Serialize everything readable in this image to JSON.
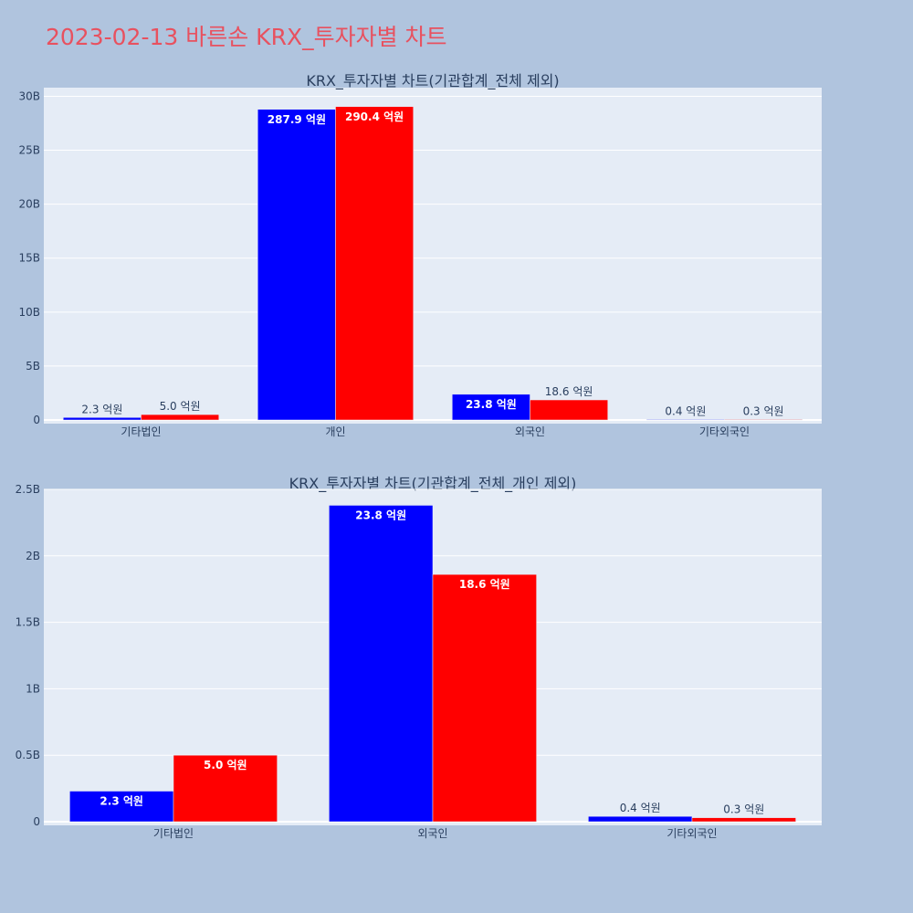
{
  "title": "2023-02-13 바른손 KRX_투자자별 차트",
  "colors": {
    "buy": "#0000ff",
    "sell": "#ff0000",
    "plot_bg": "#e5ecf6",
    "page_bg": "#b0c4de",
    "title": "#e8515f"
  },
  "chart_data": [
    {
      "type": "bar",
      "title": "KRX_투자자별 차트(기관합계_전체 제외)",
      "categories": [
        "기타법인",
        "개인",
        "외국인",
        "기타외국인"
      ],
      "series": [
        {
          "values": [
            0.23,
            28.79,
            2.38,
            0.04
          ],
          "labels": [
            "2.3 억원",
            "287.9 억원",
            "23.8 억원",
            "0.4 억원"
          ]
        },
        {
          "values": [
            0.5,
            29.04,
            1.86,
            0.03
          ],
          "labels": [
            "5.0 억원",
            "290.4 억원",
            "18.6 억원",
            "0.3 억원"
          ]
        }
      ],
      "ylim": [
        0,
        30.8
      ],
      "yticks": [
        0,
        5,
        10,
        15,
        20,
        25,
        30
      ],
      "ytick_labels": [
        "0",
        "5B",
        "10B",
        "15B",
        "20B",
        "25B",
        "30B"
      ],
      "grid": true,
      "legend": "none"
    },
    {
      "type": "bar",
      "title": "KRX_투자자별 차트(기관합계_전체_개인 제외)",
      "categories": [
        "기타법인",
        "외국인",
        "기타외국인"
      ],
      "series": [
        {
          "values": [
            0.23,
            2.38,
            0.04
          ],
          "labels": [
            "2.3 억원",
            "23.8 억원",
            "0.4 억원"
          ]
        },
        {
          "values": [
            0.5,
            1.86,
            0.03
          ],
          "labels": [
            "5.0 억원",
            "18.6 억원",
            "0.3 억원"
          ]
        }
      ],
      "ylim": [
        0,
        2.5
      ],
      "yticks": [
        0,
        0.5,
        1,
        1.5,
        2,
        2.5
      ],
      "ytick_labels": [
        "0",
        "0.5B",
        "1B",
        "1.5B",
        "2B",
        "2.5B"
      ],
      "grid": true,
      "legend": "none"
    }
  ]
}
